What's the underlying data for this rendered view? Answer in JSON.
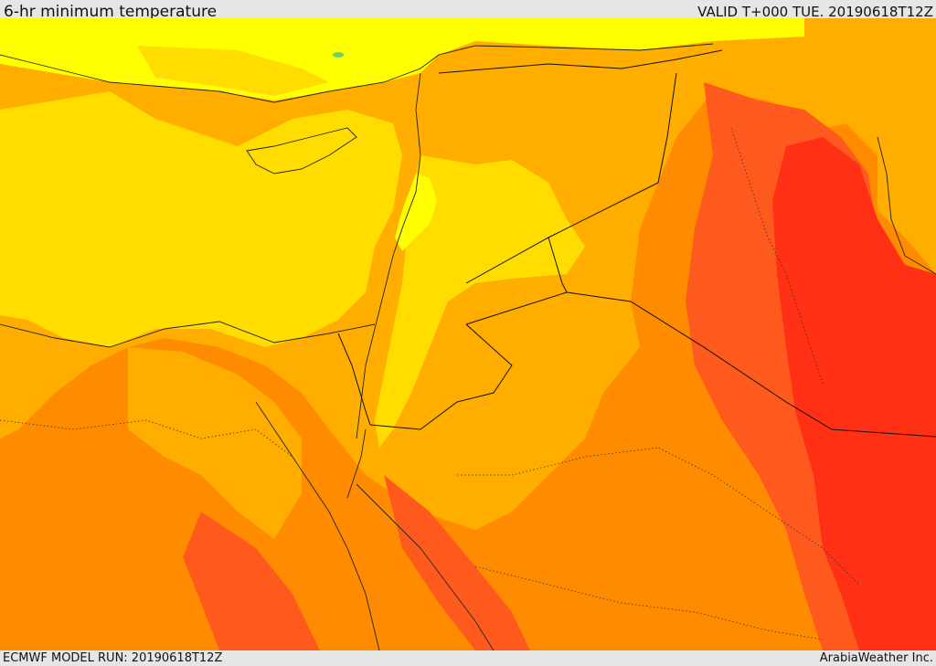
{
  "header": {
    "title": "6-hr minimum temperature",
    "valid_time": "VALID T+000 TUE. 20190618T12Z"
  },
  "footer": {
    "model_run": "ECMWF MODEL RUN: 20190618T12Z",
    "credit": "ArabiaWeather Inc."
  },
  "map": {
    "field": "6-hr minimum temperature",
    "palette": {
      "coolest": "#FFFF00",
      "cool": "#FFDD00",
      "mild": "#FFAE00",
      "warm": "#FF8C00",
      "hot": "#FF5A1E",
      "hottest": "#FF3014",
      "accent_green": "#6BD06B"
    }
  }
}
